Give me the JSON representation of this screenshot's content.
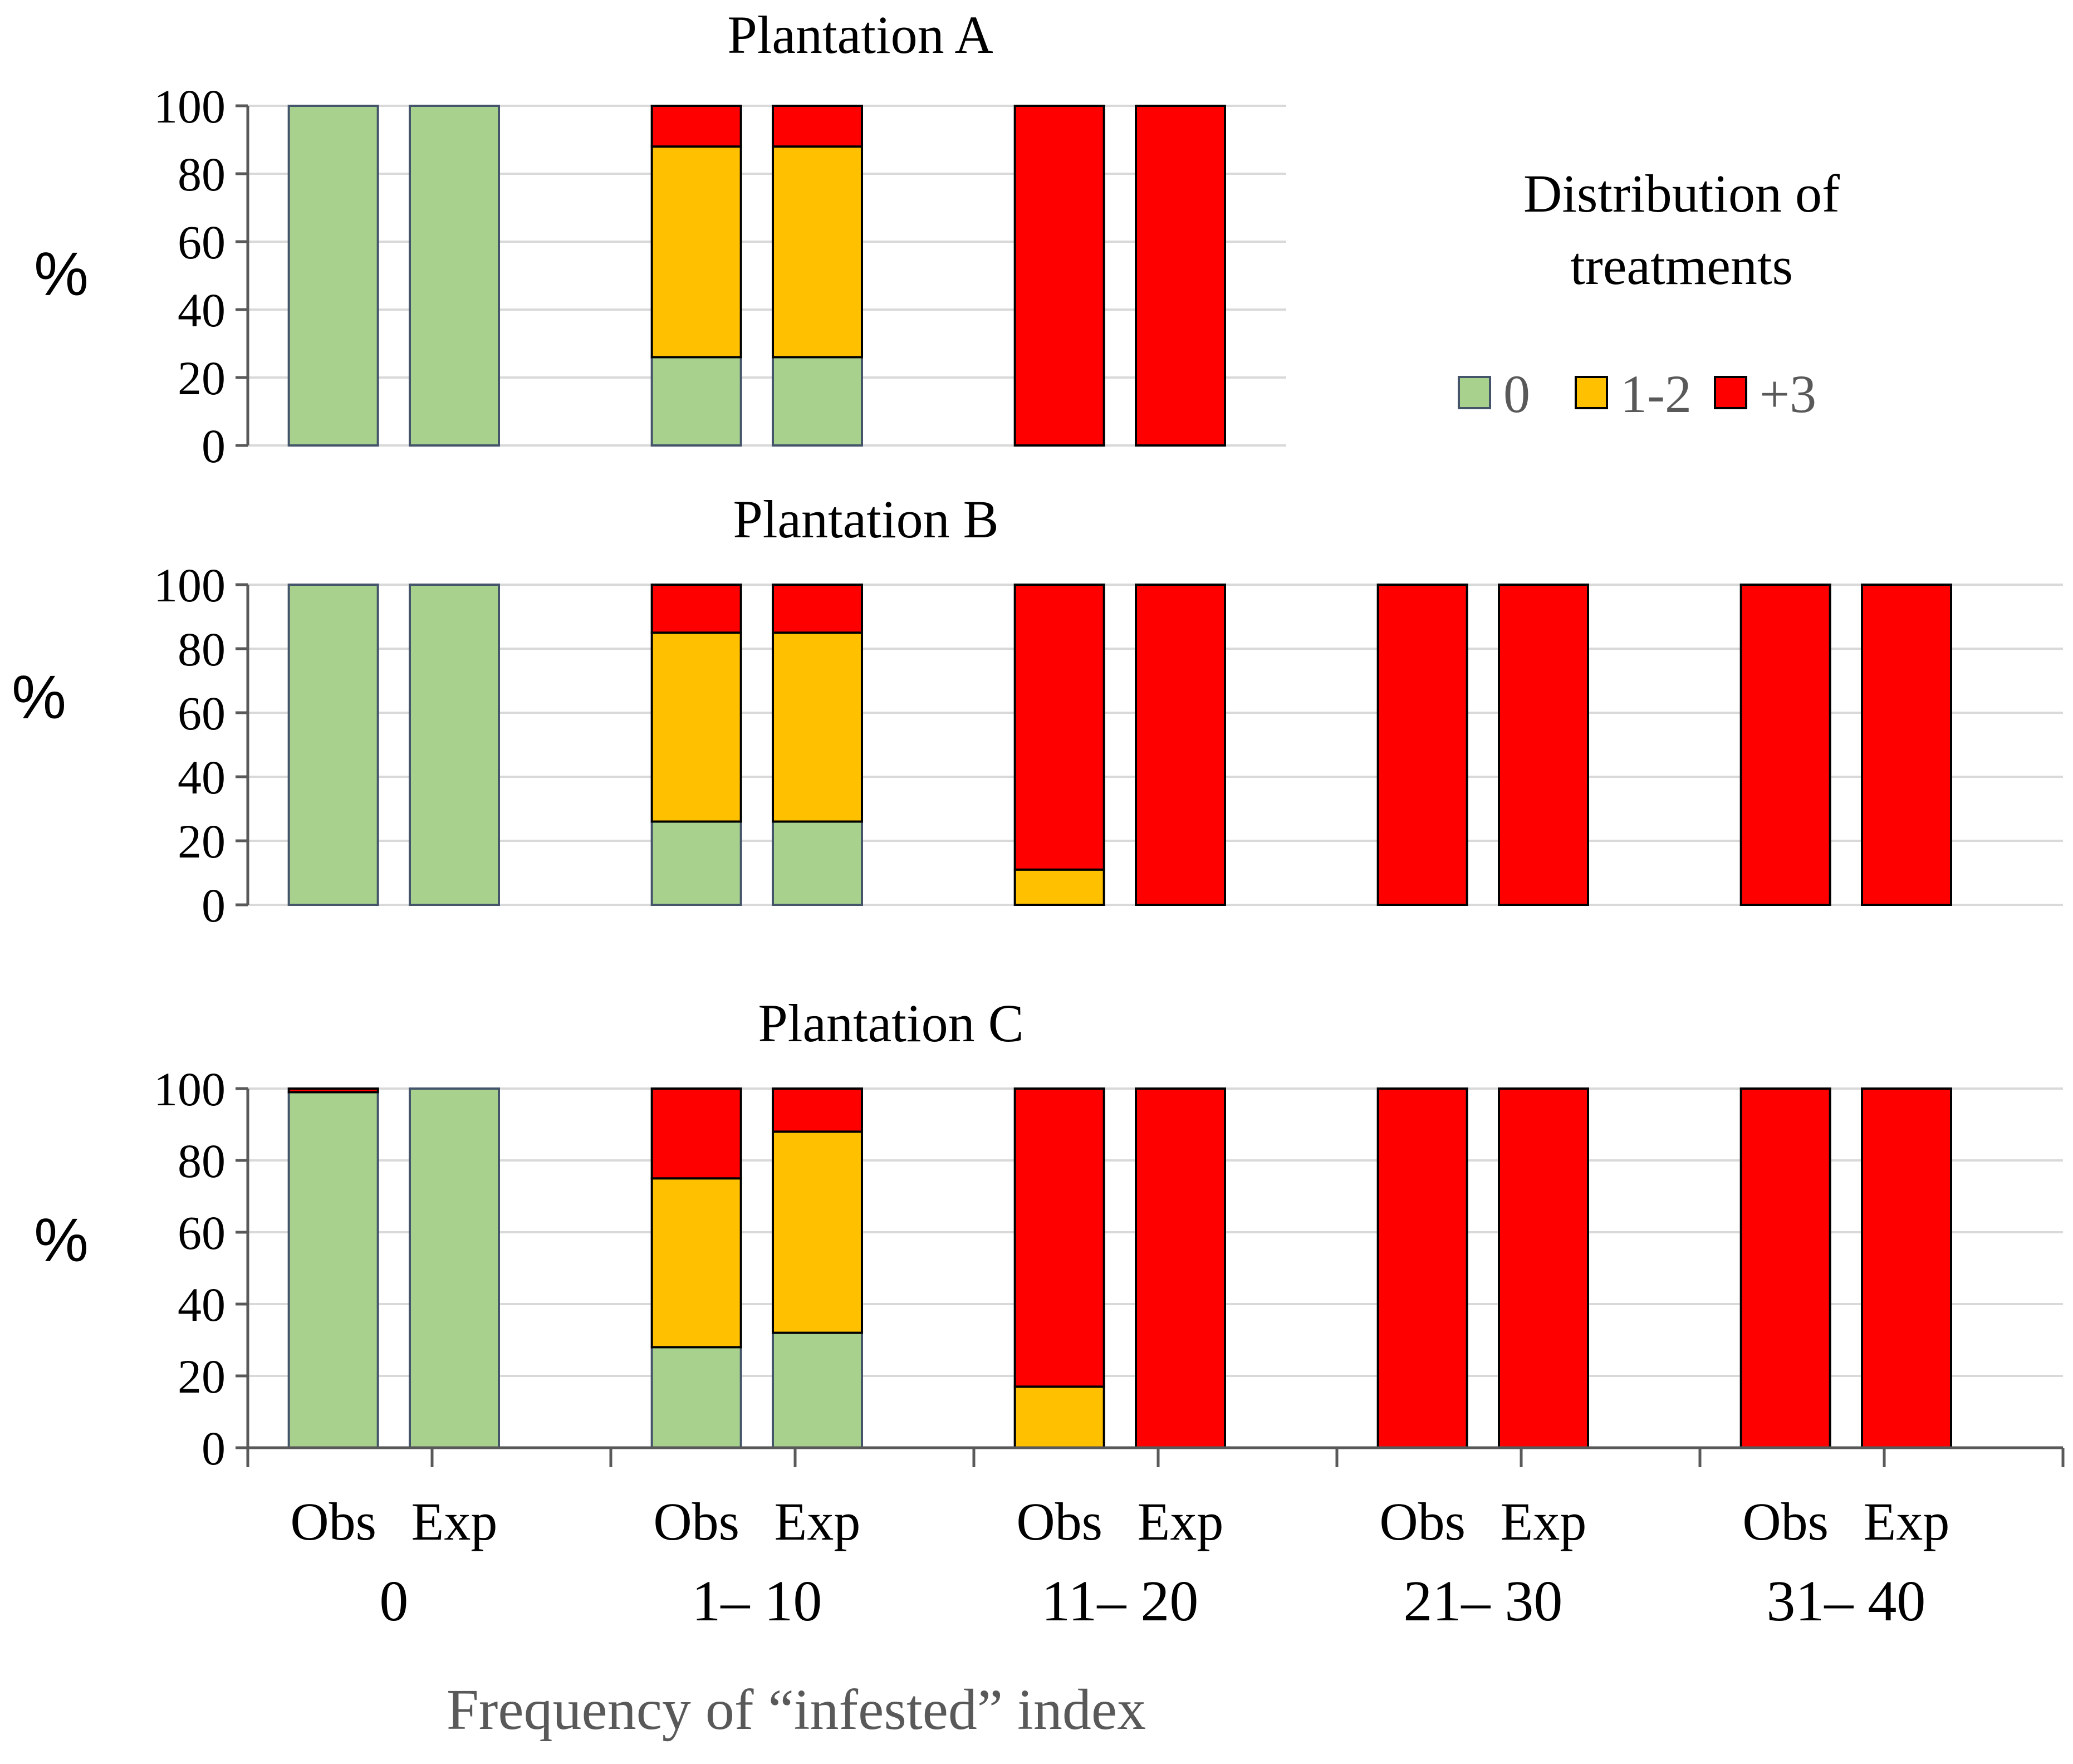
{
  "colors": {
    "zero": "#a9d18e",
    "one_two": "#ffc000",
    "three_plus": "#ff0000",
    "grid": "#d9d9d9",
    "axis": "#595959",
    "text": "#000000",
    "muted_text": "#595959"
  },
  "chart_data": {
    "type": "bar",
    "stacked": true,
    "ylabel": "%",
    "ylim": [
      0,
      100
    ],
    "yticks": [
      0,
      20,
      40,
      60,
      80,
      100
    ],
    "xlabel": "Frequency of “infested” index",
    "groups": [
      "0",
      "1– 10",
      "11– 20",
      "21– 30",
      "31– 40"
    ],
    "subcategories": [
      "Obs",
      "Exp"
    ],
    "legend": {
      "title_line1": "Distribution of",
      "title_line2": "treatments",
      "items": [
        "0",
        "1-2",
        "+3"
      ]
    },
    "panels": [
      {
        "title": "Plantation A",
        "bars": [
          {
            "group": "0",
            "sub": "Obs",
            "zero": 100,
            "one_two": 0,
            "three_plus": 0
          },
          {
            "group": "0",
            "sub": "Exp",
            "zero": 100,
            "one_two": 0,
            "three_plus": 0
          },
          {
            "group": "1– 10",
            "sub": "Obs",
            "zero": 26,
            "one_two": 62,
            "three_plus": 12
          },
          {
            "group": "1– 10",
            "sub": "Exp",
            "zero": 26,
            "one_two": 62,
            "three_plus": 12
          },
          {
            "group": "11– 20",
            "sub": "Obs",
            "zero": 0,
            "one_two": 0,
            "three_plus": 100
          },
          {
            "group": "11– 20",
            "sub": "Exp",
            "zero": 0,
            "one_two": 0,
            "three_plus": 100
          }
        ]
      },
      {
        "title": "Plantation B",
        "bars": [
          {
            "group": "0",
            "sub": "Obs",
            "zero": 100,
            "one_two": 0,
            "three_plus": 0
          },
          {
            "group": "0",
            "sub": "Exp",
            "zero": 100,
            "one_two": 0,
            "three_plus": 0
          },
          {
            "group": "1– 10",
            "sub": "Obs",
            "zero": 26,
            "one_two": 59,
            "three_plus": 15
          },
          {
            "group": "1– 10",
            "sub": "Exp",
            "zero": 26,
            "one_two": 59,
            "three_plus": 15
          },
          {
            "group": "11– 20",
            "sub": "Obs",
            "zero": 0,
            "one_two": 11,
            "three_plus": 89
          },
          {
            "group": "11– 20",
            "sub": "Exp",
            "zero": 0,
            "one_two": 0,
            "three_plus": 100
          },
          {
            "group": "21– 30",
            "sub": "Obs",
            "zero": 0,
            "one_two": 0,
            "three_plus": 100
          },
          {
            "group": "21– 30",
            "sub": "Exp",
            "zero": 0,
            "one_two": 0,
            "three_plus": 100
          },
          {
            "group": "31– 40",
            "sub": "Obs",
            "zero": 0,
            "one_two": 0,
            "three_plus": 100
          },
          {
            "group": "31– 40",
            "sub": "Exp",
            "zero": 0,
            "one_two": 0,
            "three_plus": 100
          }
        ]
      },
      {
        "title": "Plantation C",
        "bars": [
          {
            "group": "0",
            "sub": "Obs",
            "zero": 99,
            "one_two": 0,
            "three_plus": 1
          },
          {
            "group": "0",
            "sub": "Exp",
            "zero": 100,
            "one_two": 0,
            "three_plus": 0
          },
          {
            "group": "1– 10",
            "sub": "Obs",
            "zero": 28,
            "one_two": 47,
            "three_plus": 25
          },
          {
            "group": "1– 10",
            "sub": "Exp",
            "zero": 32,
            "one_two": 56,
            "three_plus": 12
          },
          {
            "group": "11– 20",
            "sub": "Obs",
            "zero": 0,
            "one_two": 17,
            "three_plus": 83
          },
          {
            "group": "11– 20",
            "sub": "Exp",
            "zero": 0,
            "one_two": 0,
            "three_plus": 100
          },
          {
            "group": "21– 30",
            "sub": "Obs",
            "zero": 0,
            "one_two": 0,
            "three_plus": 100
          },
          {
            "group": "21– 30",
            "sub": "Exp",
            "zero": 0,
            "one_two": 0,
            "three_plus": 100
          },
          {
            "group": "31– 40",
            "sub": "Obs",
            "zero": 0,
            "one_two": 0,
            "three_plus": 100
          },
          {
            "group": "31– 40",
            "sub": "Exp",
            "zero": 0,
            "one_two": 0,
            "three_plus": 100
          }
        ]
      }
    ]
  }
}
